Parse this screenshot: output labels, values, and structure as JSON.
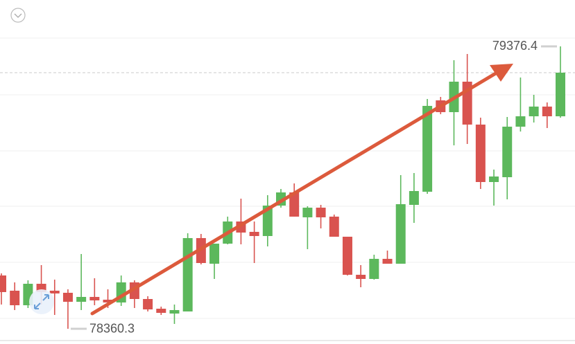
{
  "chart_data": {
    "type": "candlestick",
    "up_color": "#5cb85c",
    "down_color": "#d9534f",
    "grid": true,
    "ylim": [
      78305.5,
      79543.3
    ],
    "open": [
      78552.1,
      78497.3,
      78445.0,
      78522.2,
      78497.3,
      78489.8,
      78457.4,
      78474.9,
      78464.9,
      78454.9,
      78527.2,
      78467.4,
      78432.5,
      78415.1,
      78422.6,
      78686.6,
      78594.4,
      78666.6,
      78746.3,
      78709.0,
      78694.0,
      78803.6,
      78850.9,
      78761.3,
      78796.1,
      78763.8,
      78691.5,
      78554.6,
      78539.6,
      78611.9,
      78594.4,
      78806.1,
      78853.4,
      79182.2,
      79139.8,
      79249.4,
      79095.0,
      78888.3,
      78905.7,
      79087.5,
      79124.9,
      79159.8,
      79124.9
    ],
    "high": [
      78559.6,
      78527.2,
      78534.6,
      78589.4,
      78537.1,
      78502.3,
      78629.3,
      78542.1,
      78502.3,
      78552.1,
      78534.6,
      78477.4,
      78440.0,
      78447.5,
      78704.0,
      78701.5,
      78666.6,
      78763.8,
      78828.5,
      78746.3,
      78841.0,
      78863.4,
      78883.3,
      78801.1,
      78806.1,
      78771.2,
      78691.5,
      78589.4,
      78626.8,
      78641.7,
      78913.2,
      78920.7,
      79187.2,
      79194.6,
      79326.6,
      79349.0,
      79119.9,
      78933.1,
      79122.4,
      79264.4,
      79202.1,
      79174.7,
      79376.4
    ],
    "low": [
      78447.5,
      78427.6,
      78435.0,
      78447.5,
      78410.1,
      78360.3,
      78427.6,
      78445.0,
      78435.0,
      78442.5,
      78435.0,
      78422.6,
      78410.1,
      78377.7,
      78422.6,
      78591.9,
      78539.6,
      78664.1,
      78664.1,
      78596.9,
      78656.7,
      78796.1,
      78763.8,
      78646.7,
      78721.4,
      78691.5,
      78552.1,
      78509.7,
      78537.1,
      78594.4,
      78594.4,
      78741.4,
      78846.0,
      79132.4,
      79020.3,
      79025.3,
      78863.4,
      78803.6,
      78826.0,
      79070.1,
      79102.5,
      79082.6,
      79119.9
    ],
    "close": [
      78492.3,
      78445.0,
      78522.2,
      78492.3,
      78487.3,
      78457.4,
      78474.9,
      78462.4,
      78454.9,
      78527.2,
      78467.4,
      78430.0,
      78417.6,
      78427.6,
      78686.6,
      78596.9,
      78666.6,
      78746.3,
      78706.5,
      78694.0,
      78803.6,
      78850.9,
      78763.8,
      78796.1,
      78761.3,
      78691.5,
      78554.6,
      78539.6,
      78611.9,
      78594.4,
      78808.6,
      78855.9,
      79162.3,
      79139.8,
      79249.4,
      79095.0,
      78888.3,
      78908.2,
      79087.5,
      79124.9,
      79159.8,
      79124.9,
      79281.8
    ],
    "annotations": [
      {
        "label": "79376.4",
        "value": 79376.4
      },
      {
        "label": "78360.3",
        "value": 78360.3
      }
    ]
  }
}
